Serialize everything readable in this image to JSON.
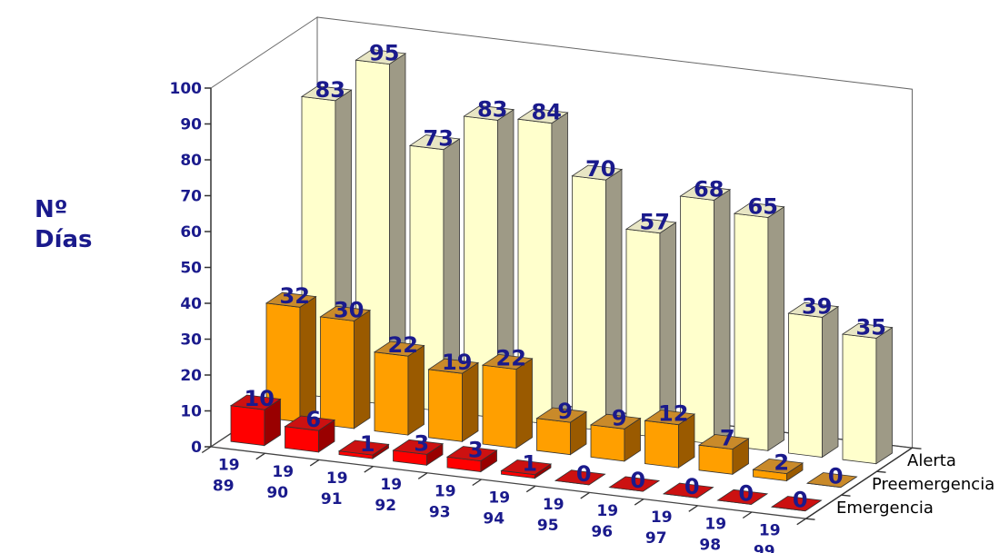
{
  "chart_data": {
    "type": "bar",
    "style": "3d-column",
    "ylabel_lines": [
      "Nº",
      "Días"
    ],
    "xlabel": "",
    "ylim": [
      0,
      100
    ],
    "y_ticks": [
      "0",
      "10",
      "20",
      "30",
      "40",
      "50",
      "60",
      "70",
      "80",
      "90",
      "100"
    ],
    "categories": [
      [
        "19",
        "89"
      ],
      [
        "19",
        "90"
      ],
      [
        "19",
        "91"
      ],
      [
        "19",
        "92"
      ],
      [
        "19",
        "93"
      ],
      [
        "19",
        "94"
      ],
      [
        "19",
        "95"
      ],
      [
        "19",
        "96"
      ],
      [
        "19",
        "97"
      ],
      [
        "19",
        "98"
      ],
      [
        "19",
        "99"
      ]
    ],
    "series": [
      {
        "name": "Alerta",
        "values": [
          83,
          95,
          73,
          83,
          84,
          70,
          57,
          68,
          65,
          39,
          35
        ],
        "color": "#ffffcc",
        "side_color": "#9e9a86",
        "top_color": "#e8e6c4"
      },
      {
        "name": "Preemergencia",
        "values": [
          32,
          30,
          22,
          19,
          22,
          9,
          9,
          12,
          7,
          2,
          0
        ],
        "color": "#ff9f00",
        "side_color": "#9a5a00",
        "top_color": "#c98a2a"
      },
      {
        "name": "Emergencia",
        "values": [
          10,
          6,
          1,
          3,
          3,
          1,
          0,
          0,
          0,
          0,
          0
        ],
        "color": "#ff0000",
        "side_color": "#990000",
        "top_color": "#cc1111"
      }
    ],
    "label_color": "#1a1a8c",
    "grid": false
  }
}
